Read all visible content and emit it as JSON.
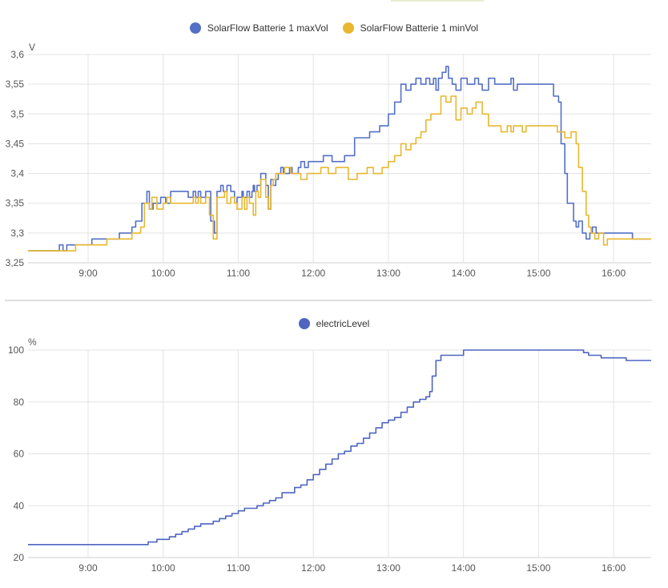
{
  "colors": {
    "maxVol": "#5470c6",
    "minVol": "#e8b730",
    "electric": "#4f65c0",
    "grid": "#e3e3e3"
  },
  "chart_data": [
    {
      "type": "line",
      "yunit": "V",
      "ylim": [
        3.25,
        3.6
      ],
      "yticks": [
        "3,25",
        "3,3",
        "3,35",
        "3,4",
        "3,45",
        "3,5",
        "3,55",
        "3,6"
      ],
      "xlim": [
        "08:12",
        "16:30"
      ],
      "xticks": [
        "9:00",
        "10:00",
        "11:00",
        "12:00",
        "13:00",
        "14:00",
        "15:00",
        "16:00"
      ],
      "grid": true,
      "legend_position": "top-center",
      "series": [
        {
          "name": "SolarFlow Batterie 1 maxVol",
          "x": [
            "08:12",
            "08:37",
            "08:40",
            "08:43",
            "09:03",
            "09:06",
            "09:25",
            "09:35",
            "09:38",
            "09:43",
            "09:47",
            "09:49",
            "09:52",
            "09:58",
            "10:02",
            "10:06",
            "10:20",
            "10:24",
            "10:26",
            "10:28",
            "10:30",
            "10:34",
            "10:38",
            "10:41",
            "10:43",
            "10:46",
            "10:48",
            "10:51",
            "10:54",
            "10:57",
            "10:59",
            "11:03",
            "11:04",
            "11:07",
            "11:09",
            "11:11",
            "11:12",
            "11:13",
            "11:15",
            "11:18",
            "11:20",
            "11:22",
            "11:24",
            "11:26",
            "11:28",
            "11:30",
            "11:32",
            "11:34",
            "11:36",
            "11:39",
            "11:41",
            "11:43",
            "11:48",
            "11:50",
            "11:53",
            "11:56",
            "11:59",
            "12:03",
            "12:08",
            "12:15",
            "12:25",
            "12:33",
            "12:45",
            "12:53",
            "13:00",
            "13:05",
            "13:10",
            "13:14",
            "13:18",
            "13:22",
            "13:26",
            "13:30",
            "13:33",
            "13:36",
            "13:38",
            "13:40",
            "13:43",
            "13:46",
            "13:48",
            "13:51",
            "13:54",
            "13:58",
            "14:03",
            "14:06",
            "14:09",
            "14:12",
            "14:15",
            "14:20",
            "14:25",
            "14:30",
            "14:35",
            "14:38",
            "14:40",
            "14:43",
            "14:47",
            "14:50",
            "14:55",
            "15:00",
            "15:05",
            "15:10",
            "15:12",
            "15:16",
            "15:18",
            "15:21",
            "15:23",
            "15:28",
            "15:30",
            "15:32",
            "15:35",
            "15:38",
            "15:41",
            "15:43",
            "15:46",
            "15:49",
            "15:52",
            "15:55",
            "15:58",
            "16:02",
            "16:10",
            "16:15",
            "16:22",
            "16:30"
          ],
          "values": [
            3.27,
            3.28,
            3.27,
            3.28,
            3.29,
            3.29,
            3.3,
            3.31,
            3.32,
            3.35,
            3.37,
            3.34,
            3.35,
            3.36,
            3.35,
            3.37,
            3.36,
            3.37,
            3.36,
            3.37,
            3.36,
            3.37,
            3.32,
            3.3,
            3.37,
            3.38,
            3.37,
            3.38,
            3.37,
            3.35,
            3.36,
            3.37,
            3.36,
            3.37,
            3.36,
            3.37,
            3.38,
            3.37,
            3.38,
            3.4,
            3.4,
            3.38,
            3.34,
            3.39,
            3.38,
            3.39,
            3.4,
            3.41,
            3.4,
            3.4,
            3.41,
            3.4,
            3.41,
            3.42,
            3.41,
            3.42,
            3.42,
            3.42,
            3.43,
            3.42,
            3.43,
            3.46,
            3.47,
            3.48,
            3.5,
            3.52,
            3.55,
            3.54,
            3.55,
            3.56,
            3.55,
            3.56,
            3.55,
            3.56,
            3.54,
            3.56,
            3.57,
            3.58,
            3.56,
            3.55,
            3.54,
            3.56,
            3.55,
            3.55,
            3.56,
            3.55,
            3.54,
            3.56,
            3.55,
            3.55,
            3.55,
            3.56,
            3.54,
            3.55,
            3.55,
            3.55,
            3.55,
            3.55,
            3.55,
            3.55,
            3.53,
            3.52,
            3.45,
            3.4,
            3.35,
            3.32,
            3.31,
            3.32,
            3.3,
            3.29,
            3.3,
            3.31,
            3.3,
            3.3,
            3.3,
            3.3,
            3.3,
            3.3,
            3.3,
            3.29,
            3.29,
            3.29
          ]
        },
        {
          "name": "SolarFlow Batterie 1 minVol",
          "x": [
            "08:12",
            "08:47",
            "08:50",
            "09:15",
            "09:25",
            "09:35",
            "09:42",
            "09:45",
            "09:49",
            "09:51",
            "09:55",
            "10:00",
            "10:03",
            "10:06",
            "10:24",
            "10:26",
            "10:28",
            "10:30",
            "10:34",
            "10:37",
            "10:40",
            "10:43",
            "10:45",
            "10:49",
            "10:51",
            "10:54",
            "10:57",
            "10:59",
            "11:03",
            "11:05",
            "11:07",
            "11:09",
            "11:12",
            "11:14",
            "11:15",
            "11:16",
            "11:18",
            "11:20",
            "11:22",
            "11:24",
            "11:26",
            "11:28",
            "11:30",
            "11:34",
            "11:37",
            "11:42",
            "11:45",
            "11:50",
            "11:55",
            "12:03",
            "12:06",
            "12:12",
            "12:18",
            "12:28",
            "12:35",
            "12:43",
            "12:48",
            "12:55",
            "13:00",
            "13:05",
            "13:10",
            "13:14",
            "13:18",
            "13:22",
            "13:26",
            "13:30",
            "13:34",
            "13:38",
            "13:42",
            "13:46",
            "13:50",
            "13:54",
            "13:58",
            "14:03",
            "14:07",
            "14:10",
            "14:15",
            "14:20",
            "14:26",
            "14:30",
            "14:35",
            "14:38",
            "14:40",
            "14:43",
            "14:47",
            "14:50",
            "14:55",
            "15:00",
            "15:05",
            "15:10",
            "15:15",
            "15:17",
            "15:21",
            "15:23",
            "15:26",
            "15:30",
            "15:32",
            "15:35",
            "15:38",
            "15:40",
            "15:42",
            "15:45",
            "15:48",
            "15:52",
            "15:55",
            "15:58",
            "16:02",
            "16:10",
            "16:15",
            "16:22",
            "16:30"
          ],
          "values": [
            3.27,
            3.27,
            3.28,
            3.29,
            3.29,
            3.3,
            3.31,
            3.35,
            3.34,
            3.36,
            3.34,
            3.35,
            3.36,
            3.35,
            3.36,
            3.35,
            3.36,
            3.35,
            3.36,
            3.33,
            3.29,
            3.36,
            3.36,
            3.37,
            3.35,
            3.36,
            3.35,
            3.34,
            3.36,
            3.34,
            3.36,
            3.35,
            3.33,
            3.37,
            3.37,
            3.36,
            3.39,
            3.39,
            3.36,
            3.34,
            3.38,
            3.39,
            3.4,
            3.4,
            3.41,
            3.4,
            3.4,
            3.39,
            3.4,
            3.4,
            3.41,
            3.4,
            3.41,
            3.39,
            3.4,
            3.41,
            3.4,
            3.41,
            3.42,
            3.43,
            3.45,
            3.44,
            3.45,
            3.46,
            3.47,
            3.49,
            3.5,
            3.5,
            3.53,
            3.52,
            3.53,
            3.49,
            3.51,
            3.5,
            3.51,
            3.52,
            3.5,
            3.48,
            3.48,
            3.47,
            3.48,
            3.47,
            3.48,
            3.48,
            3.47,
            3.48,
            3.48,
            3.48,
            3.48,
            3.48,
            3.47,
            3.47,
            3.46,
            3.46,
            3.47,
            3.45,
            3.41,
            3.37,
            3.33,
            3.31,
            3.3,
            3.29,
            3.3,
            3.28,
            3.29,
            3.29,
            3.29,
            3.29,
            3.29,
            3.29,
            3.29
          ]
        }
      ]
    },
    {
      "type": "line",
      "yunit": "%",
      "ylim": [
        20,
        100
      ],
      "yticks": [
        "20",
        "40",
        "60",
        "80",
        "100"
      ],
      "xlim": [
        "08:12",
        "16:30"
      ],
      "xticks": [
        "9:00",
        "10:00",
        "11:00",
        "12:00",
        "13:00",
        "14:00",
        "15:00",
        "16:00"
      ],
      "grid": true,
      "legend_position": "top-center",
      "series": [
        {
          "name": "electricLevel",
          "x": [
            "08:12",
            "09:46",
            "09:48",
            "09:50",
            "09:55",
            "10:00",
            "10:05",
            "10:10",
            "10:15",
            "10:20",
            "10:25",
            "10:30",
            "10:35",
            "10:40",
            "10:45",
            "10:50",
            "10:55",
            "11:00",
            "11:05",
            "11:10",
            "11:15",
            "11:20",
            "11:25",
            "11:30",
            "11:35",
            "11:40",
            "11:45",
            "11:50",
            "11:55",
            "12:00",
            "12:05",
            "12:10",
            "12:15",
            "12:20",
            "12:25",
            "12:30",
            "12:35",
            "12:40",
            "12:45",
            "12:50",
            "12:55",
            "13:00",
            "13:05",
            "13:10",
            "13:15",
            "13:20",
            "13:25",
            "13:30",
            "13:33",
            "13:35",
            "13:38",
            "13:42",
            "13:58",
            "14:00",
            "15:30",
            "15:36",
            "15:40",
            "15:45",
            "15:50",
            "16:05",
            "16:10",
            "16:30"
          ],
          "values": [
            25,
            25,
            26,
            26,
            27,
            27,
            28,
            29,
            30,
            31,
            32,
            33,
            33,
            34,
            35,
            36,
            37,
            38,
            39,
            39,
            40,
            41,
            42,
            43,
            45,
            45,
            47,
            48,
            50,
            52,
            54,
            56,
            58,
            60,
            61,
            63,
            64,
            66,
            68,
            70,
            72,
            73,
            74,
            76,
            78,
            80,
            81,
            82,
            84,
            90,
            96,
            98,
            98,
            100,
            100,
            99,
            98,
            98,
            97,
            97,
            96,
            96
          ]
        }
      ]
    }
  ]
}
